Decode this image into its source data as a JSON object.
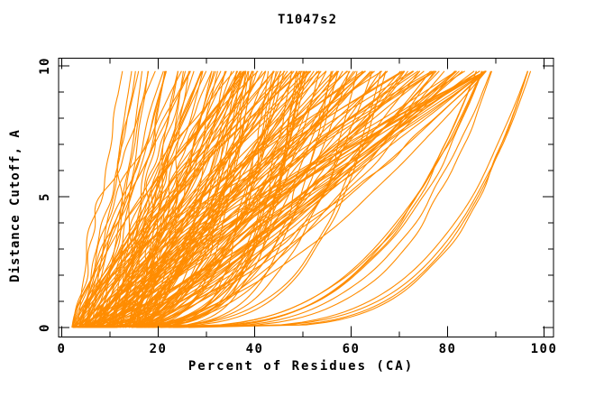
{
  "chart_data": {
    "type": "line",
    "title": "T1047s2",
    "xlabel": "Percent of Residues (CA)",
    "ylabel": "Distance Cutoff, A",
    "xlim": [
      0,
      102
    ],
    "ylim": [
      0,
      10.3
    ],
    "grid": false,
    "legend": "none",
    "background": "#ffffff",
    "axis_color": "#000000",
    "text_color": "#000000",
    "curve_color": "#FF8C00",
    "x_major_ticks": [
      0,
      20,
      40,
      60,
      80,
      100
    ],
    "x_tick_labels": [
      "0",
      "20",
      "40",
      "60",
      "80",
      "100"
    ],
    "x_minor_ticks": [
      10,
      30,
      50,
      70,
      90
    ],
    "y_major_ticks": [
      0,
      5,
      10
    ],
    "y_tick_labels": [
      "0",
      "5",
      "10"
    ],
    "y_minor_ticks": [
      1,
      2,
      3,
      4,
      6,
      7,
      8,
      9
    ],
    "y_start": 0.0,
    "y_end": 9.8,
    "curve_step": 0.1,
    "curve_groups": [
      {
        "name": "main-fan",
        "seed": 1337,
        "count": 150,
        "x0_range": [
          2,
          18
        ],
        "x0_bias": 1.2,
        "span_min": 8,
        "span_extra": 76,
        "x9_max": 88,
        "k_range": [
          0.55,
          1.45
        ],
        "wiggle_amp": [
          0.2,
          1.2
        ]
      },
      {
        "name": "bottom-sweep",
        "seed": 555,
        "count": 28,
        "x0_range": [
          2,
          10
        ],
        "x0_bias": 1.0,
        "x9_range": [
          34,
          68
        ],
        "k_range": [
          0.18,
          0.32
        ],
        "wiggle_amp": [
          0.2,
          0.8
        ]
      },
      {
        "name": "late-risers",
        "seed": 2024,
        "count": 7,
        "x0_range": [
          14,
          24
        ],
        "x0_bias": 1.0,
        "x9_range": [
          84,
          91
        ],
        "k_range": [
          0.24,
          0.34
        ],
        "wiggle_amp": [
          0.1,
          0.5
        ]
      },
      {
        "name": "right-outliers",
        "seed": 77,
        "count": 4,
        "x0_range": [
          20,
          28
        ],
        "x0_bias": 1.0,
        "x9_range": [
          96.5,
          99
        ],
        "k_range": [
          0.22,
          0.28
        ],
        "wiggle_amp": [
          0.1,
          0.4
        ]
      }
    ]
  }
}
